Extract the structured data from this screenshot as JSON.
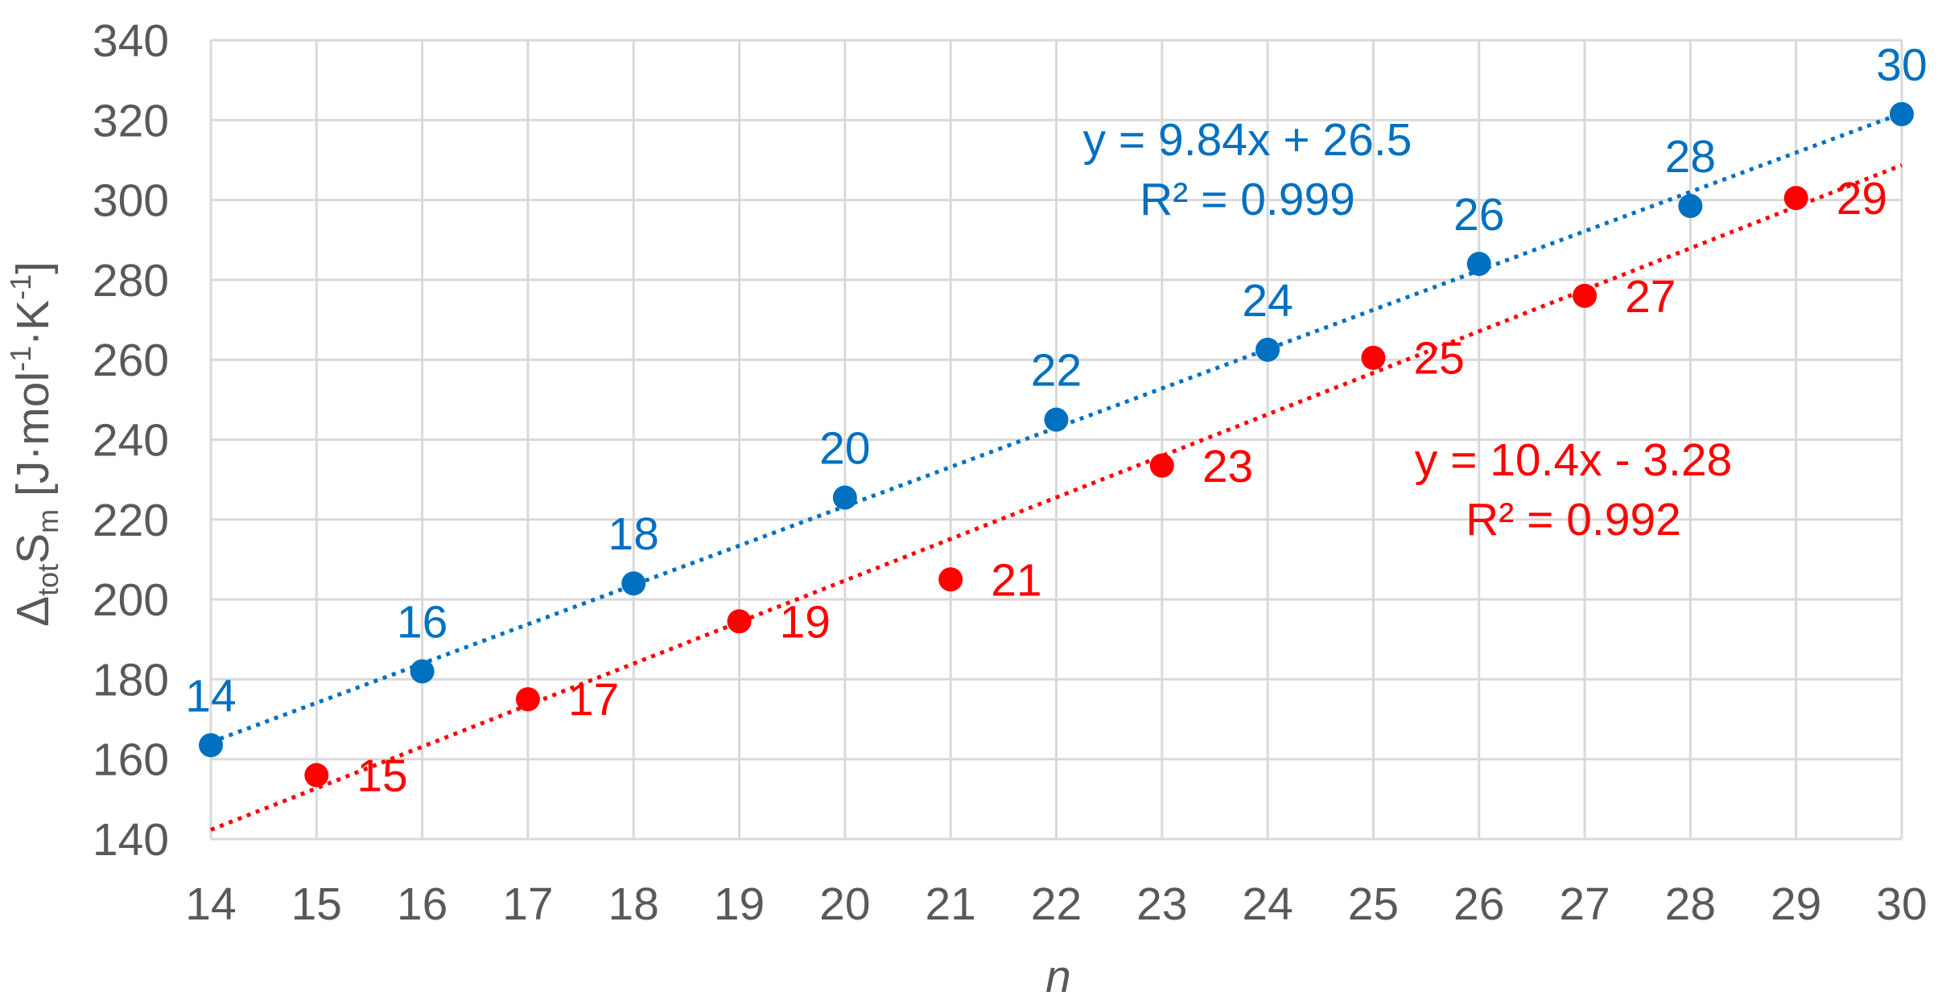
{
  "chart_data": {
    "type": "scatter",
    "xlabel": "n",
    "ylabel": {
      "prefix": "Δ",
      "prefix_sub": "tot",
      "symbol": "S",
      "symbol_sub": "m",
      "units_open": " [J·mol",
      "sup1": "-1",
      "units_mid": "·K",
      "sup2": "-1",
      "units_close": "]"
    },
    "xlim": [
      14,
      30
    ],
    "ylim": [
      140,
      340
    ],
    "xticks": [
      14,
      15,
      16,
      17,
      18,
      19,
      20,
      21,
      22,
      23,
      24,
      25,
      26,
      27,
      28,
      29,
      30
    ],
    "yticks": [
      140,
      160,
      180,
      200,
      220,
      240,
      260,
      280,
      300,
      320,
      340
    ],
    "grid": true,
    "legend": "none",
    "series": [
      {
        "color": "#0070C0",
        "points": [
          {
            "x": 14,
            "y": 163.5,
            "label": "14"
          },
          {
            "x": 16,
            "y": 182,
            "label": "16"
          },
          {
            "x": 18,
            "y": 204,
            "label": "18"
          },
          {
            "x": 20,
            "y": 225.5,
            "label": "20"
          },
          {
            "x": 22,
            "y": 245,
            "label": "22"
          },
          {
            "x": 24,
            "y": 262.5,
            "label": "24"
          },
          {
            "x": 26,
            "y": 284,
            "label": "26"
          },
          {
            "x": 28,
            "y": 298.5,
            "label": "28"
          },
          {
            "x": 30,
            "y": 321.5,
            "label": "30"
          }
        ],
        "trendline": {
          "slope": 9.84,
          "intercept": 26.5,
          "x_range": [
            14,
            30
          ],
          "style": "dotted"
        },
        "equation": "y = 9.84x + 26.5",
        "r2": "R² = 0.999"
      },
      {
        "color": "#FF0000",
        "points": [
          {
            "x": 15,
            "y": 156,
            "label": "15"
          },
          {
            "x": 17,
            "y": 175,
            "label": "17"
          },
          {
            "x": 19,
            "y": 194.5,
            "label": "19"
          },
          {
            "x": 21,
            "y": 205,
            "label": "21"
          },
          {
            "x": 23,
            "y": 233.5,
            "label": "23"
          },
          {
            "x": 25,
            "y": 260.5,
            "label": "25"
          },
          {
            "x": 27,
            "y": 276,
            "label": "27"
          },
          {
            "x": 29,
            "y": 300.5,
            "label": "29"
          }
        ],
        "trendline": {
          "slope": 10.4,
          "intercept": -3.28,
          "x_range": [
            14,
            30
          ],
          "style": "dotted"
        },
        "equation": "y = 10.4x - 3.28",
        "r2": "R² = 0.992"
      }
    ]
  }
}
